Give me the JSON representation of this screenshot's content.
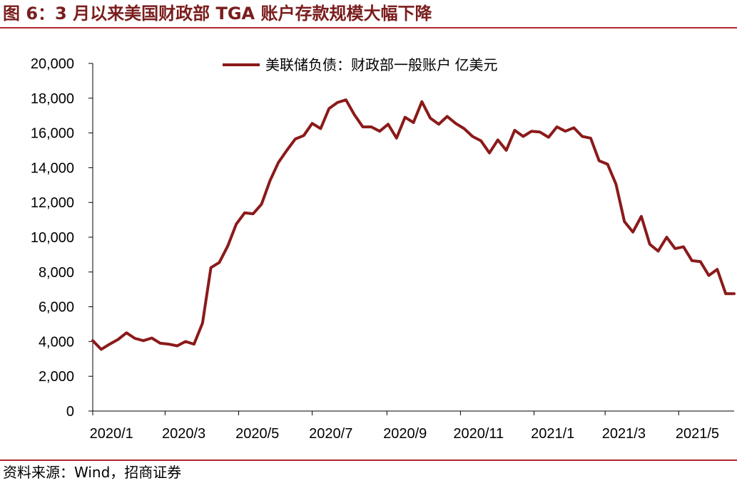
{
  "figure": {
    "title": "图 6：3 月以来美国财政部 TGA 账户存款规模大幅下降",
    "source": "资料来源：Wind，招商证券"
  },
  "colors": {
    "series": "#8b1a1a",
    "rule": "#b0282d",
    "title": "#7a1d1d"
  },
  "chart_data": {
    "type": "line",
    "title": "",
    "xlabel": "",
    "ylabel": "",
    "ylim": [
      0,
      20000
    ],
    "yticks": [
      "0",
      "2,000",
      "4,000",
      "6,000",
      "8,000",
      "10,000",
      "12,000",
      "14,000",
      "16,000",
      "18,000",
      "20,000"
    ],
    "ytick_values": [
      0,
      2000,
      4000,
      6000,
      8000,
      10000,
      12000,
      14000,
      16000,
      18000,
      20000
    ],
    "xticks": [
      "2020/1",
      "2020/3",
      "2020/5",
      "2020/7",
      "2020/9",
      "2020/11",
      "2021/1",
      "2021/3",
      "2021/5"
    ],
    "grid": false,
    "legend": "top-center",
    "series": [
      {
        "name": "美联储负债：财政部一般账户 亿美元",
        "frequency": "weekly",
        "x": [
          "2020-01-01",
          "2020-01-08",
          "2020-01-15",
          "2020-01-22",
          "2020-01-29",
          "2020-02-05",
          "2020-02-12",
          "2020-02-19",
          "2020-02-26",
          "2020-03-04",
          "2020-03-11",
          "2020-03-18",
          "2020-03-25",
          "2020-04-01",
          "2020-04-08",
          "2020-04-15",
          "2020-04-22",
          "2020-04-29",
          "2020-05-06",
          "2020-05-13",
          "2020-05-20",
          "2020-05-27",
          "2020-06-03",
          "2020-06-10",
          "2020-06-17",
          "2020-06-24",
          "2020-07-01",
          "2020-07-08",
          "2020-07-15",
          "2020-07-22",
          "2020-07-29",
          "2020-08-05",
          "2020-08-12",
          "2020-08-19",
          "2020-08-26",
          "2020-09-02",
          "2020-09-09",
          "2020-09-16",
          "2020-09-23",
          "2020-09-30",
          "2020-10-07",
          "2020-10-14",
          "2020-10-21",
          "2020-10-28",
          "2020-11-04",
          "2020-11-11",
          "2020-11-18",
          "2020-11-25",
          "2020-12-02",
          "2020-12-09",
          "2020-12-16",
          "2020-12-23",
          "2020-12-30",
          "2021-01-06",
          "2021-01-13",
          "2021-01-20",
          "2021-01-27",
          "2021-02-03",
          "2021-02-10",
          "2021-02-17",
          "2021-02-24",
          "2021-03-03",
          "2021-03-10",
          "2021-03-17",
          "2021-03-24",
          "2021-03-31",
          "2021-04-07",
          "2021-04-14",
          "2021-04-21",
          "2021-04-28",
          "2021-05-05",
          "2021-05-12",
          "2021-05-19",
          "2021-05-26",
          "2021-06-02",
          "2021-06-09",
          "2021-06-16"
        ],
        "values": [
          4050,
          3550,
          3850,
          4120,
          4500,
          4180,
          4050,
          4200,
          3900,
          3850,
          3750,
          4000,
          3850,
          5050,
          8250,
          8550,
          9500,
          10750,
          11400,
          11350,
          11900,
          13250,
          14300,
          15000,
          15650,
          15850,
          16550,
          16250,
          17400,
          17750,
          17900,
          17050,
          16350,
          16350,
          16100,
          16500,
          15700,
          16900,
          16600,
          17800,
          16850,
          16500,
          16950,
          16550,
          16250,
          15800,
          15550,
          14850,
          15600,
          15000,
          16150,
          15800,
          16100,
          16050,
          15750,
          16350,
          16100,
          16300,
          15800,
          15700,
          14400,
          14200,
          13050,
          10900,
          10300,
          11200,
          9600,
          9200,
          10000,
          9350,
          9450,
          8650,
          8600,
          7800,
          8150,
          6750,
          6750
        ]
      }
    ]
  }
}
